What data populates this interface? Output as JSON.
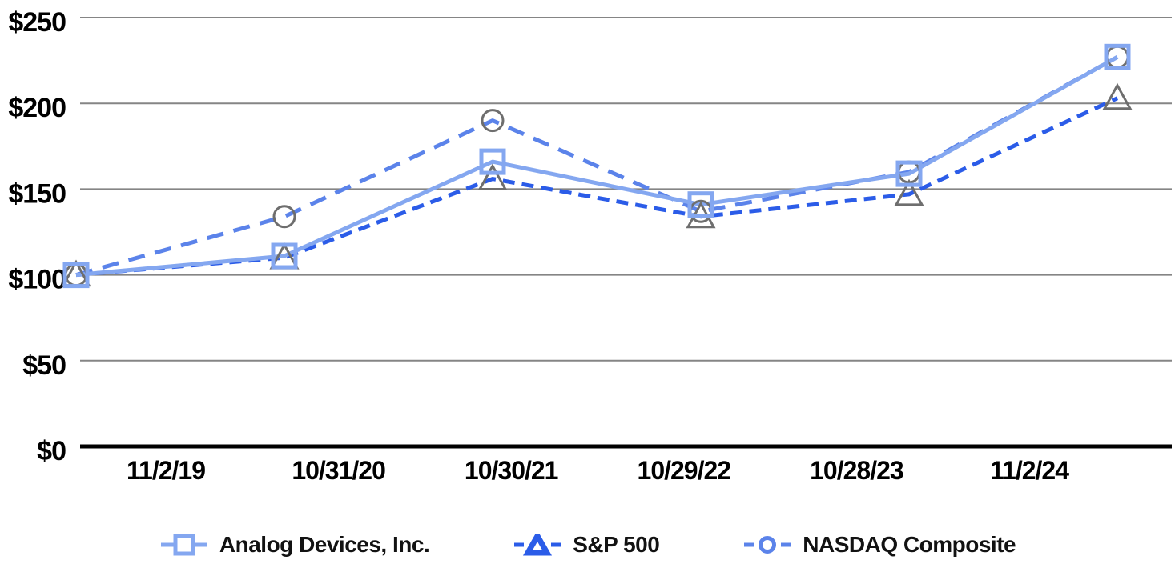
{
  "chart_data": {
    "type": "line",
    "title": "",
    "xlabel": "",
    "ylabel": "",
    "x_labels": [
      "11/2/19",
      "10/31/20",
      "10/30/21",
      "10/29/22",
      "10/28/23",
      "11/2/24"
    ],
    "y_tick_labels": [
      "$0",
      "$50",
      "$100",
      "$150",
      "$200",
      "$250"
    ],
    "y_tick_values": [
      0,
      50,
      100,
      150,
      200,
      250
    ],
    "ylim": [
      0,
      250
    ],
    "grid": "horizontal-only",
    "grid_color": "#858585",
    "axis_color": "#000000",
    "legend_position": "bottom",
    "series": [
      {
        "name": "Analog Devices, Inc.",
        "color": "#84A7F0",
        "line_style": "solid",
        "marker": "square",
        "marker_color": "#84A7F0",
        "values": [
          100,
          111,
          166,
          141,
          159,
          227
        ]
      },
      {
        "name": "S&P 500",
        "color": "#2B5CE8",
        "line_style": "dashed",
        "marker": "triangle",
        "marker_color": "#6E6E6E",
        "values": [
          100,
          110,
          156,
          134,
          147,
          203
        ]
      },
      {
        "name": "NASDAQ Composite",
        "color": "#5B83EA",
        "line_style": "long-dash",
        "marker": "circle",
        "marker_color": "#6E6E6E",
        "values": [
          100,
          134,
          190,
          137,
          160,
          227
        ]
      }
    ]
  },
  "legend": {
    "items": [
      {
        "label": "Analog Devices, Inc."
      },
      {
        "label": "S&P 500"
      },
      {
        "label": "NASDAQ Composite"
      }
    ]
  }
}
